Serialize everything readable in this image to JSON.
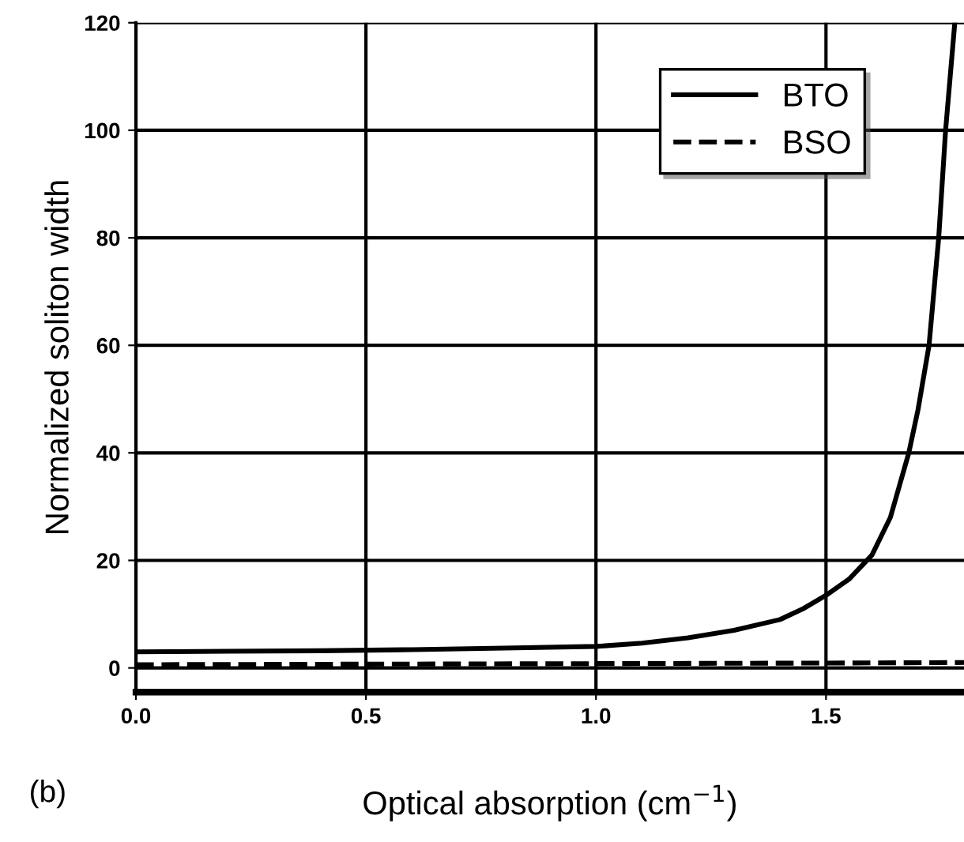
{
  "chart_data": {
    "type": "line",
    "xlabel": "Optical absorption (cm$^{−1}$)",
    "ylabel": "Normalized soliton width",
    "series": [
      {
        "name": "BTO",
        "color": "#000000",
        "line_style": "solid",
        "x": [
          0.0,
          0.2,
          0.4,
          0.6,
          0.8,
          1.0,
          1.1,
          1.2,
          1.3,
          1.4,
          1.45,
          1.5,
          1.55,
          1.6,
          1.64,
          1.68,
          1.7,
          1.724,
          1.745,
          1.76,
          1.78
        ],
        "values": [
          3,
          3.1,
          3.2,
          3.4,
          3.7,
          4,
          4.6,
          5.6,
          7,
          9,
          11,
          13.5,
          16.5,
          21,
          28,
          40,
          48,
          60,
          80,
          100,
          120
        ]
      },
      {
        "name": "BSO",
        "color": "#000000",
        "line_style": "dashed",
        "x": [
          0.0,
          0.5,
          1.0,
          1.5,
          1.8
        ],
        "values": [
          0.6,
          0.7,
          0.8,
          0.9,
          1.0
        ]
      }
    ],
    "xlim": [
      0,
      1.8
    ],
    "ylim": [
      -4.5,
      120
    ],
    "xticks": [
      {
        "value": 0,
        "label": "0.0"
      },
      0.5,
      {
        "value": 1,
        "label": "1.0"
      },
      1.5
    ],
    "yticks": [
      0,
      20,
      40,
      60,
      80,
      100,
      120
    ],
    "grid": true,
    "legend": "top right",
    "annotations": [
      "(b)"
    ]
  }
}
